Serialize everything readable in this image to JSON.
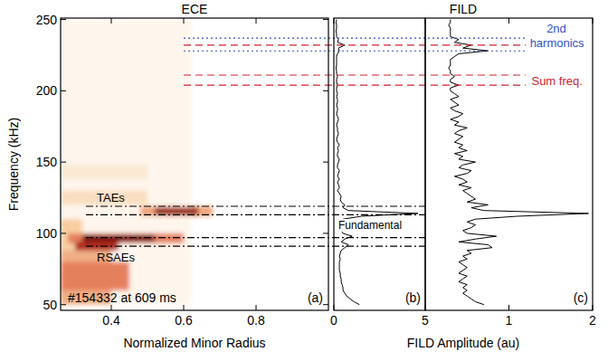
{
  "chart_data": [
    {
      "type": "heatmap",
      "title": "ECE",
      "x_label": "Normalized Minor Radius",
      "y_label": "Frequency (kHz)",
      "xlim": [
        0.26,
        1.0
      ],
      "xticks": [
        0.4,
        0.6,
        0.8
      ],
      "ylim": [
        46,
        251
      ],
      "yticks": [
        50,
        100,
        150,
        200,
        250
      ],
      "cells": [
        [
          0.26,
          0.62,
          50,
          250,
          0.06
        ],
        [
          0.26,
          0.5,
          138,
          148,
          0.14
        ],
        [
          0.26,
          0.5,
          120,
          130,
          0.2
        ],
        [
          0.26,
          0.32,
          50,
          110,
          0.3
        ],
        [
          0.26,
          0.4,
          50,
          88,
          0.38
        ],
        [
          0.26,
          0.45,
          60,
          80,
          0.5
        ],
        [
          0.28,
          0.6,
          93,
          100,
          0.5
        ],
        [
          0.3,
          0.42,
          88,
          94,
          0.8
        ],
        [
          0.32,
          0.52,
          94,
          99,
          1.0
        ],
        [
          0.48,
          0.68,
          112,
          119,
          0.4
        ],
        [
          0.52,
          0.64,
          113,
          118,
          0.9
        ]
      ],
      "hlines": [
        {
          "value": 119,
          "color": "#000000",
          "line_style": "dashdot"
        },
        {
          "value": 113,
          "color": "#000000",
          "line_style": "dashdot"
        },
        {
          "value": 97,
          "color": "#000000",
          "line_style": "dashdot"
        },
        {
          "value": 91,
          "color": "#000000",
          "line_style": "dashdot"
        },
        {
          "value": 237,
          "color": "#3050c0",
          "line_style": "dotted"
        },
        {
          "value": 228,
          "color": "#3050c0",
          "line_style": "dotted"
        },
        {
          "value": 232,
          "color": "#d02030",
          "line_style": "dashed"
        },
        {
          "value": 211,
          "color": "#d02030",
          "line_style": "dashed"
        },
        {
          "value": 204,
          "color": "#d02030",
          "line_style": "dashed"
        }
      ],
      "annotations": [
        {
          "text": "#154332 at 609 ms",
          "color": "#000000"
        },
        {
          "text": "(a)",
          "color": "#000000"
        },
        {
          "text": "TAEs",
          "color": "#000000"
        },
        {
          "text": "RSAEs",
          "color": "#000000"
        }
      ]
    },
    {
      "type": "line",
      "title": "FILD",
      "x_label": "FILD Amplitude (au)",
      "orientation": "horizontal",
      "xlim": [
        0,
        5
      ],
      "xticks": [
        0,
        5
      ],
      "ylim": [
        46,
        251
      ],
      "y": [
        50,
        52,
        54,
        56,
        58,
        60,
        62,
        64,
        66,
        68,
        70,
        72,
        74,
        76,
        78,
        80,
        82,
        84,
        86,
        88,
        90,
        92,
        94,
        96,
        98,
        100,
        102,
        104,
        106,
        108,
        110,
        112,
        114,
        116,
        118,
        120,
        122,
        124,
        126,
        128,
        130,
        132,
        134,
        136,
        138,
        140,
        142,
        144,
        146,
        148,
        150,
        152,
        154,
        156,
        158,
        160,
        162,
        164,
        166,
        168,
        170,
        172,
        174,
        176,
        178,
        180,
        182,
        184,
        186,
        188,
        190,
        192,
        194,
        196,
        198,
        200,
        202,
        204,
        206,
        208,
        210,
        212,
        214,
        216,
        218,
        220,
        222,
        224,
        226,
        228,
        230,
        232,
        234,
        236,
        238,
        240,
        242,
        244,
        246,
        248,
        250
      ],
      "series": [
        {
          "color": "#000000",
          "values": [
            1.4,
            1.1,
            0.9,
            0.7,
            0.6,
            0.5,
            0.5,
            0.45,
            0.4,
            0.4,
            0.35,
            0.35,
            0.3,
            0.3,
            0.3,
            0.3,
            0.35,
            0.3,
            0.35,
            0.4,
            0.6,
            0.8,
            0.4,
            0.6,
            1.0,
            0.5,
            0.4,
            0.35,
            0.4,
            0.4,
            0.5,
            1.5,
            4.6,
            0.8,
            0.5,
            0.6,
            0.4,
            0.35,
            0.4,
            0.3,
            0.2,
            0.3,
            0.25,
            0.2,
            0.3,
            0.2,
            0.25,
            0.3,
            0.2,
            0.2,
            0.25,
            0.3,
            0.2,
            0.2,
            0.25,
            0.2,
            0.3,
            0.2,
            0.15,
            0.2,
            0.25,
            0.2,
            0.2,
            0.15,
            0.2,
            0.25,
            0.2,
            0.15,
            0.2,
            0.2,
            0.15,
            0.2,
            0.2,
            0.15,
            0.2,
            0.15,
            0.15,
            0.2,
            0.15,
            0.15,
            0.2,
            0.15,
            0.15,
            0.12,
            0.15,
            0.15,
            0.15,
            0.15,
            0.2,
            0.3,
            0.25,
            0.6,
            0.2,
            0.25,
            0.15,
            0.15,
            0.12,
            0.15,
            0.15,
            0.12,
            0.15
          ]
        }
      ],
      "annotations": [
        {
          "text": "(b)",
          "color": "#000000"
        },
        {
          "text": "Fundamental",
          "color": "#000000"
        }
      ]
    },
    {
      "type": "line",
      "orientation": "horizontal",
      "xlim": [
        0,
        2
      ],
      "xticks": [
        1,
        2
      ],
      "ylim": [
        46,
        251
      ],
      "y": [
        50,
        52,
        54,
        56,
        58,
        60,
        62,
        64,
        66,
        68,
        70,
        72,
        74,
        76,
        78,
        80,
        82,
        84,
        86,
        88,
        90,
        92,
        94,
        96,
        98,
        100,
        102,
        104,
        106,
        108,
        110,
        112,
        114,
        116,
        118,
        120,
        122,
        124,
        126,
        128,
        130,
        132,
        134,
        136,
        138,
        140,
        142,
        144,
        146,
        148,
        150,
        152,
        154,
        156,
        158,
        160,
        162,
        164,
        166,
        168,
        170,
        172,
        174,
        176,
        178,
        180,
        182,
        184,
        186,
        188,
        190,
        192,
        194,
        196,
        198,
        200,
        202,
        204,
        206,
        208,
        210,
        212,
        214,
        216,
        218,
        220,
        222,
        224,
        226,
        228,
        230,
        232,
        234,
        236,
        238,
        240,
        242,
        244,
        246,
        248,
        250
      ],
      "series": [
        {
          "color": "#000000",
          "values": [
            0.7,
            0.6,
            0.55,
            0.5,
            0.45,
            0.5,
            0.45,
            0.5,
            0.4,
            0.45,
            0.5,
            0.4,
            0.45,
            0.5,
            0.45,
            0.4,
            0.5,
            0.45,
            0.55,
            0.5,
            0.8,
            0.75,
            0.4,
            0.6,
            0.85,
            0.5,
            0.45,
            0.55,
            0.6,
            0.5,
            0.6,
            1.1,
            1.95,
            0.7,
            0.55,
            0.75,
            0.5,
            0.6,
            0.55,
            0.5,
            0.45,
            0.55,
            0.4,
            0.5,
            0.45,
            0.35,
            0.5,
            0.55,
            0.4,
            0.45,
            0.6,
            0.4,
            0.45,
            0.35,
            0.5,
            0.4,
            0.45,
            0.35,
            0.4,
            0.45,
            0.35,
            0.4,
            0.5,
            0.35,
            0.4,
            0.3,
            0.4,
            0.45,
            0.35,
            0.3,
            0.4,
            0.35,
            0.3,
            0.4,
            0.35,
            0.3,
            0.3,
            0.4,
            0.3,
            0.3,
            0.35,
            0.3,
            0.3,
            0.28,
            0.3,
            0.3,
            0.3,
            0.35,
            0.4,
            0.75,
            0.45,
            0.55,
            0.35,
            0.4,
            0.3,
            0.3,
            0.3,
            0.3,
            0.28,
            0.3,
            0.3
          ]
        }
      ],
      "annotations": [
        {
          "text": "(c)",
          "color": "#000000"
        },
        {
          "text": "Sum freq.",
          "color": "#d02030"
        },
        {
          "text": "2nd harmonics",
          "color": "#3050c0"
        }
      ]
    }
  ]
}
